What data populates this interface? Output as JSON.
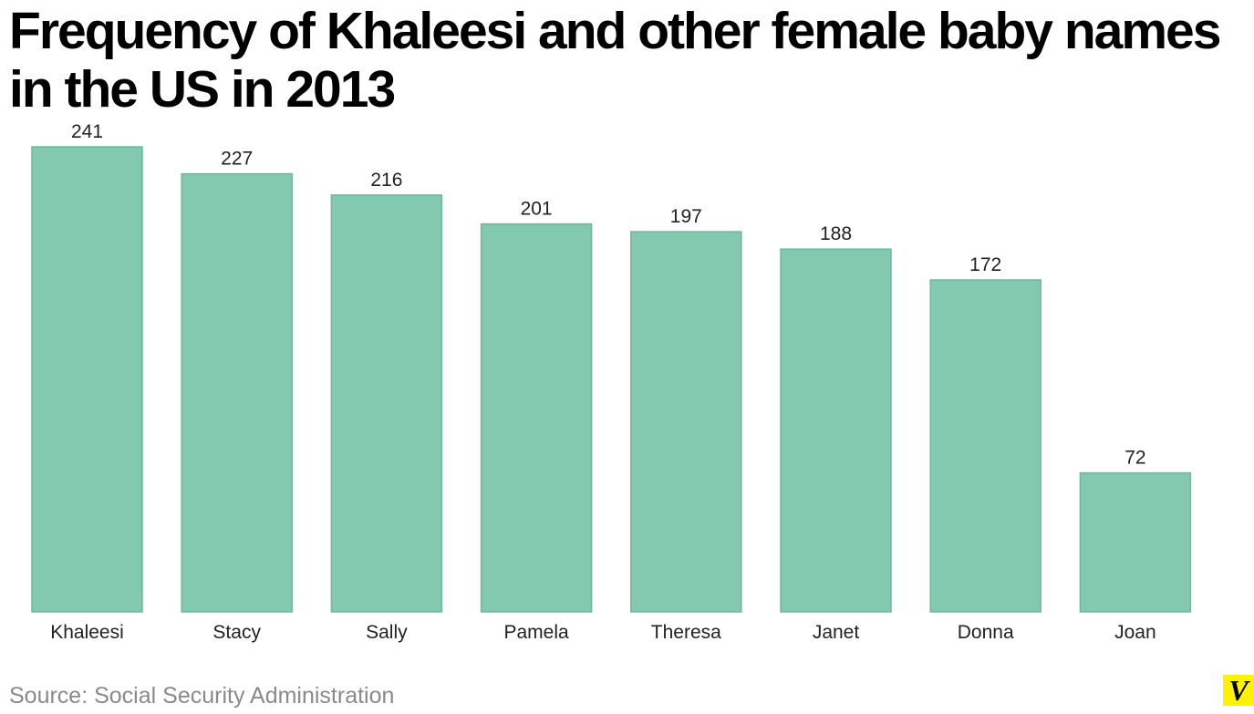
{
  "chart_data": {
    "type": "bar",
    "title": "Frequency of Khaleesi and other female baby names in the US in 2013",
    "categories": [
      "Khaleesi",
      "Stacy",
      "Sally",
      "Pamela",
      "Theresa",
      "Janet",
      "Donna",
      "Joan"
    ],
    "values": [
      241,
      227,
      216,
      201,
      197,
      188,
      172,
      72
    ],
    "data_labels": [
      "241",
      "227",
      "216",
      "201",
      "197",
      "188",
      "172",
      "72"
    ],
    "xlabel": "",
    "ylabel": "",
    "ylim": [
      0,
      241
    ],
    "grid": false,
    "legend": "none",
    "bar_color": "#82c9b0",
    "bar_stroke": "#6fb79c"
  },
  "footer": {
    "source": "Source: Social Security Administration",
    "logo_text": "V",
    "logo_bg": "#fff200"
  }
}
